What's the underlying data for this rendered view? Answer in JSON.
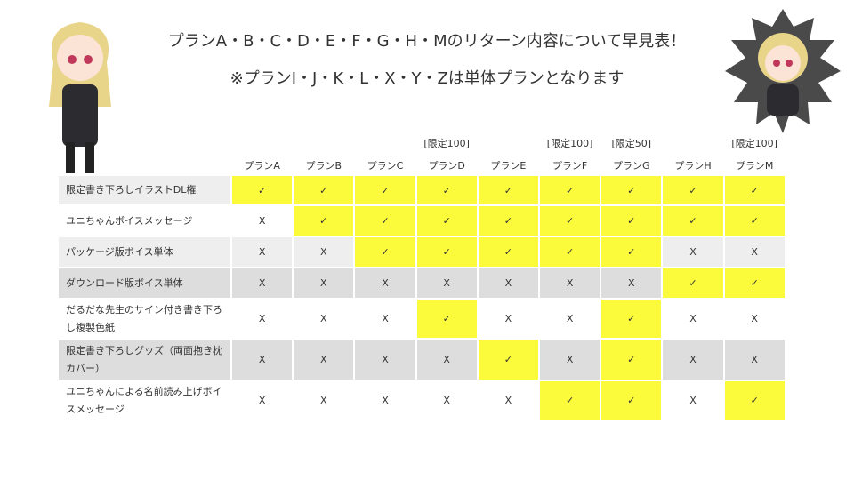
{
  "header": {
    "line1": "プランA・B・C・D・E・F・G・H・Mのリターン内容について早見表！",
    "line2": "※プランI・J・K・L・X・Y・Zは単体プランとなります"
  },
  "table": {
    "columns": [
      {
        "name": "プランA"
      },
      {
        "name": "プランB"
      },
      {
        "name": "プランC"
      },
      {
        "name": "プランD",
        "limit": "[限定100]"
      },
      {
        "name": "プランE"
      },
      {
        "name": "プランF",
        "limit": "[限定100]"
      },
      {
        "name": "プランG",
        "limit": "[限定50]"
      },
      {
        "name": "プランH"
      },
      {
        "name": "プランM",
        "limit": "[限定100]"
      }
    ],
    "rows": [
      {
        "label": "限定書き下ろしイラストDL権",
        "cells": [
          "✓",
          "✓",
          "✓",
          "✓",
          "✓",
          "✓",
          "✓",
          "✓",
          "✓"
        ]
      },
      {
        "label": "ユニちゃんボイスメッセージ",
        "cells": [
          "X",
          "✓",
          "✓",
          "✓",
          "✓",
          "✓",
          "✓",
          "✓",
          "✓"
        ]
      },
      {
        "label": "パッケージ版ボイス単体",
        "cells": [
          "X",
          "X",
          "✓",
          "✓",
          "✓",
          "✓",
          "✓",
          "X",
          "X"
        ]
      },
      {
        "label": "ダウンロード版ボイス単体",
        "cells": [
          "X",
          "X",
          "X",
          "X",
          "X",
          "X",
          "X",
          "✓",
          "✓"
        ]
      },
      {
        "label": "だるだな先生のサイン付き書き下ろし複製色紙",
        "cells": [
          "X",
          "X",
          "X",
          "✓",
          "X",
          "X",
          "✓",
          "X",
          "X"
        ]
      },
      {
        "label": "限定書き下ろしグッズ（両面抱き枕カバー）",
        "cells": [
          "X",
          "X",
          "X",
          "X",
          "✓",
          "X",
          "✓",
          "X",
          "X"
        ]
      },
      {
        "label": "ユニちゃんによる名前読み上げボイスメッセージ",
        "cells": [
          "X",
          "X",
          "X",
          "X",
          "X",
          "✓",
          "✓",
          "X",
          "✓"
        ]
      }
    ]
  }
}
